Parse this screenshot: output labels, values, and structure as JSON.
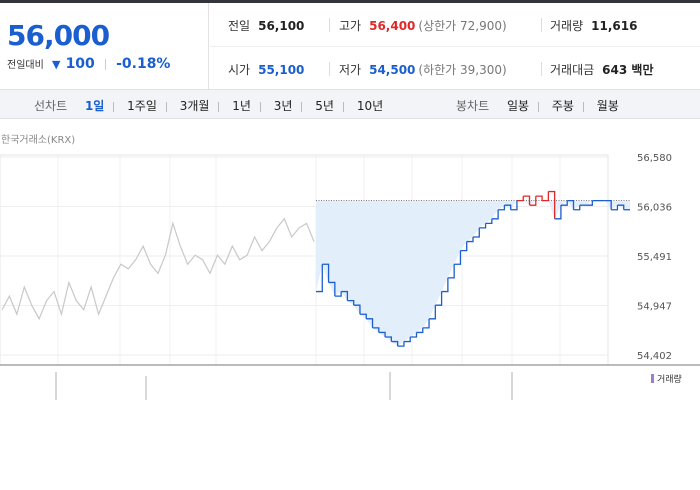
{
  "quote": {
    "price": "56,000",
    "change_label": "전일대비",
    "change_direction": "down",
    "change_value": "100",
    "change_rate": "-0.18%",
    "stats": {
      "prev_close": {
        "label": "전일",
        "value": "56,100"
      },
      "high": {
        "label": "고가",
        "value": "56,400",
        "note": "(상한가 72,900)"
      },
      "volume": {
        "label": "거래량",
        "value": "11,616"
      },
      "open": {
        "label": "시가",
        "value": "55,100"
      },
      "low": {
        "label": "저가",
        "value": "54,500",
        "note": "(하한가 39,300)"
      },
      "trade_value": {
        "label": "거래대금",
        "value": "643 백만"
      }
    }
  },
  "tabs": {
    "line_label": "선차트",
    "line_tabs": [
      {
        "label": "1일",
        "active": true
      },
      {
        "label": "1주일",
        "active": false
      },
      {
        "label": "3개월",
        "active": false
      },
      {
        "label": "1년",
        "active": false
      },
      {
        "label": "3년",
        "active": false
      },
      {
        "label": "5년",
        "active": false
      },
      {
        "label": "10년",
        "active": false
      }
    ],
    "candle_label": "봉차트",
    "candle_tabs": [
      {
        "label": "일봉"
      },
      {
        "label": "주봉"
      },
      {
        "label": "월봉"
      }
    ]
  },
  "source": "한국거래소(KRX)",
  "volume_legend": "거래량",
  "colors": {
    "up": "#e02828",
    "down": "#1a5ecf",
    "prev_day": "#c8c8c8",
    "fill": "#e3eefb"
  },
  "chart_data": {
    "type": "line",
    "title": "",
    "ylim": [
      54402,
      56580
    ],
    "y_ticks": [
      "56,580",
      "56,036",
      "55,491",
      "54,947",
      "54,402"
    ],
    "reference_price": 56100,
    "series": [
      {
        "role": "previous-day",
        "values": [
          54900,
          55050,
          54850,
          55150,
          54950,
          54800,
          55000,
          55100,
          54850,
          55200,
          55000,
          54900,
          55150,
          54850,
          55050,
          55250,
          55400,
          55350,
          55450,
          55600,
          55400,
          55300,
          55500,
          55850,
          55600,
          55400,
          55500,
          55450,
          55300,
          55500,
          55400,
          55600,
          55450,
          55500,
          55700,
          55550,
          55650,
          55800,
          55900,
          55700,
          55800,
          55850,
          55650
        ]
      },
      {
        "role": "today",
        "values": [
          55100,
          55400,
          55200,
          55050,
          55100,
          55000,
          54950,
          54850,
          54800,
          54700,
          54650,
          54600,
          54550,
          54500,
          54550,
          54600,
          54650,
          54700,
          54800,
          54950,
          55100,
          55250,
          55400,
          55550,
          55650,
          55700,
          55800,
          55850,
          55900,
          56000,
          56050,
          56000,
          56100,
          56150,
          56050,
          56150,
          56100,
          56200,
          55900,
          56050,
          56100,
          56000,
          56050,
          56050,
          56100,
          56100,
          56100,
          56000,
          56050,
          56000,
          56000
        ]
      }
    ]
  }
}
